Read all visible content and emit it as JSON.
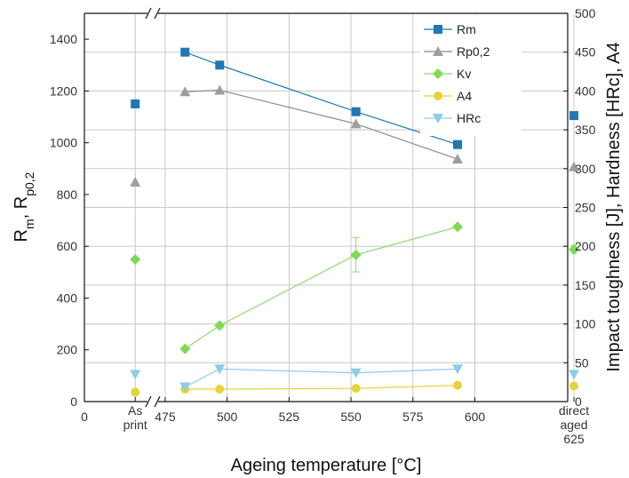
{
  "chart_data": {
    "type": "scatter",
    "xlabel": "Ageing temperature [°C]",
    "ylabel_left_main": "R",
    "ylabel_left_parts": [
      "m",
      ", R",
      "p0,2"
    ],
    "ylabel_right": "Impact toughness [J], Hardness [HRc], A4",
    "x_ticks": [
      "0",
      "475",
      "500",
      "525",
      "550",
      "575",
      "600"
    ],
    "x_special_ticks": [
      {
        "x": 20,
        "lines": [
          "As",
          "print"
        ]
      },
      {
        "x": 640,
        "lines": [
          "direct",
          "aged",
          "625"
        ]
      }
    ],
    "xlim_broken": [
      [
        0,
        25
      ],
      [
        470,
        650
      ]
    ],
    "ylim_left": [
      0,
      1500
    ],
    "ylim_right": [
      0,
      500
    ],
    "y_left_ticks": [
      "0",
      "200",
      "400",
      "600",
      "800",
      "1000",
      "1200",
      "1400"
    ],
    "y_right_ticks": [
      "0",
      "50",
      "100",
      "150",
      "200",
      "250",
      "300",
      "350",
      "400",
      "450",
      "500"
    ],
    "grid": true,
    "legend_position": "top-right",
    "series": [
      {
        "name": "Rm",
        "axis": "left",
        "marker": "square",
        "color": "#1f77b4",
        "connected_x": [
          483,
          497,
          552,
          593
        ],
        "connected_y": [
          1350,
          1300,
          1120,
          993
        ],
        "standalone": [
          {
            "x": 20,
            "y": 1150
          },
          {
            "x": 640,
            "y": 1105
          }
        ]
      },
      {
        "name": "Rp0,2",
        "axis": "left",
        "marker": "triangle-up",
        "color": "#9e9e9e",
        "connected_x": [
          483,
          497,
          552,
          593
        ],
        "connected_y": [
          1197,
          1203,
          1073,
          937
        ],
        "standalone": [
          {
            "x": 20,
            "y": 848
          },
          {
            "x": 640,
            "y": 907
          }
        ]
      },
      {
        "name": "Kv",
        "axis": "right",
        "marker": "diamond",
        "color": "#7ed957",
        "connected_x": [
          483,
          497,
          552,
          593
        ],
        "connected_y": [
          68,
          98,
          189,
          225
        ],
        "error": [
          0,
          0,
          22,
          0
        ],
        "standalone": [
          {
            "x": 20,
            "y": 183
          },
          {
            "x": 640,
            "y": 196,
            "err": 5
          }
        ]
      },
      {
        "name": "A4",
        "axis": "right",
        "marker": "circle",
        "color": "#e8d23a",
        "connected_x": [
          483,
          497,
          552,
          593
        ],
        "connected_y": [
          16,
          16,
          17,
          21
        ],
        "standalone": [
          {
            "x": 20,
            "y": 12
          },
          {
            "x": 640,
            "y": 20
          }
        ]
      },
      {
        "name": "HRc",
        "axis": "right",
        "marker": "triangle-down",
        "color": "#8ccde8",
        "connected_x": [
          483,
          497,
          552,
          593
        ],
        "connected_y": [
          19,
          42,
          37,
          42
        ],
        "standalone": [
          {
            "x": 20,
            "y": 35
          },
          {
            "x": 640,
            "y": 35
          }
        ]
      }
    ],
    "colors": {
      "Rm_line": "#1f77b4",
      "Rm_marker": "#1f77b4",
      "Rp_line": "#8a8a8a",
      "Rp_marker": "#9e9e9e",
      "Kv_line": "#8fd96b",
      "Kv_marker": "#7ed957",
      "A4_line": "#e8d23a",
      "A4_marker": "#e8d23a",
      "HRc_line": "#8ccde8",
      "HRc_marker": "#8ccde8",
      "grid": "#c8c8c8",
      "axis": "#111111"
    }
  }
}
